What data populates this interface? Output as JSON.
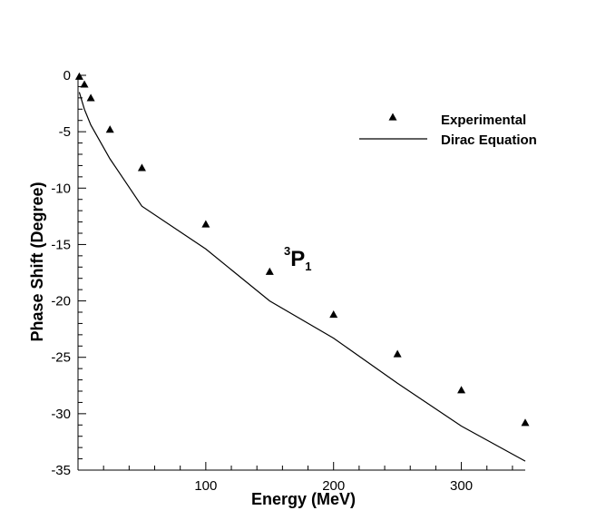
{
  "chart_data": {
    "type": "scatter",
    "xlabel": "Energy (MeV)",
    "ylabel": "Phase Shift (Degree)",
    "xlim": [
      0,
      350
    ],
    "ylim": [
      -35,
      0
    ],
    "xticks": [
      100,
      200,
      300
    ],
    "yticks": [
      0,
      -5,
      -10,
      -15,
      -20,
      -25,
      -30,
      -35
    ],
    "annotation": {
      "sup": "3",
      "main": "P",
      "sub": "1"
    },
    "legend_position": "top-right",
    "series": [
      {
        "name": "Experimental",
        "kind": "marker",
        "marker": "triangle",
        "x": [
          1,
          5,
          10,
          25,
          50,
          100,
          150,
          200,
          250,
          300,
          350
        ],
        "y": [
          -0.1,
          -0.8,
          -2.0,
          -4.8,
          -8.2,
          -13.2,
          -17.4,
          -21.2,
          -24.7,
          -27.9,
          -30.8
        ]
      },
      {
        "name": "Dirac Equation",
        "kind": "line",
        "x": [
          1,
          5,
          10,
          25,
          50,
          100,
          150,
          200,
          250,
          300,
          350
        ],
        "y": [
          -1.5,
          -3.0,
          -4.4,
          -7.4,
          -11.6,
          -15.4,
          -20.0,
          -23.3,
          -27.3,
          -31.1,
          -34.2
        ]
      }
    ]
  }
}
